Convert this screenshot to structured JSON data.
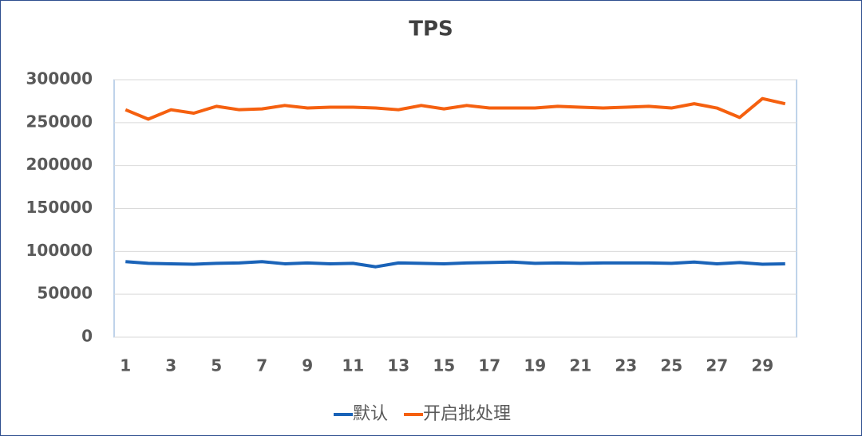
{
  "chart_data": {
    "type": "line",
    "title": "TPS",
    "categories": [
      1,
      null,
      3,
      null,
      5,
      null,
      7,
      null,
      9,
      null,
      11,
      null,
      13,
      null,
      15,
      null,
      17,
      null,
      19,
      null,
      21,
      null,
      23,
      null,
      25,
      null,
      27,
      null,
      29,
      null
    ],
    "series": [
      {
        "name": "默认",
        "color": "#1a63b8",
        "values": [
          88000,
          86000,
          85500,
          85000,
          86000,
          86500,
          88000,
          85500,
          86500,
          85500,
          86000,
          82000,
          86500,
          86000,
          85500,
          86500,
          87000,
          87500,
          86000,
          86500,
          86000,
          86500,
          86500,
          86500,
          86000,
          87500,
          85500,
          87000,
          85000,
          85500
        ]
      },
      {
        "name": "开启批处理",
        "color": "#f5600f",
        "values": [
          265000,
          254000,
          265000,
          261000,
          269000,
          265000,
          266000,
          270000,
          267000,
          268000,
          268000,
          267000,
          265000,
          270000,
          266000,
          270000,
          267000,
          267000,
          267000,
          269000,
          268000,
          267000,
          268000,
          269000,
          267000,
          272000,
          267000,
          256000,
          278000,
          272000
        ]
      }
    ],
    "ylim": [
      0,
      300000
    ],
    "yticks": [
      0,
      50000,
      100000,
      150000,
      200000,
      250000,
      300000
    ],
    "grid": true,
    "legend": "bottom"
  }
}
